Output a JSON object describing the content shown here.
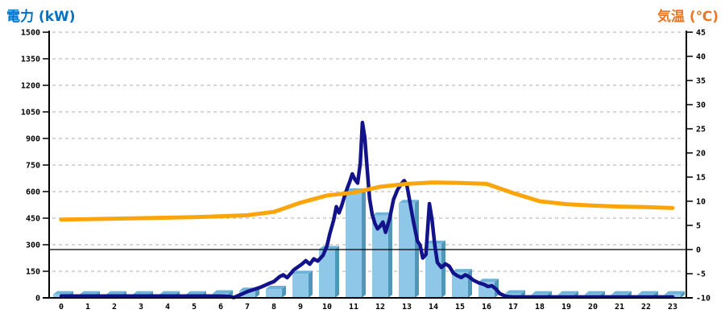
{
  "header": {
    "left_axis_title": "電力 (kW)",
    "right_axis_title": "気温 (℃)"
  },
  "colors": {
    "left_title": "#0072C6",
    "right_title": "#ED7622",
    "bar_front": "#8EC7E7",
    "bar_side": "#4E97B8",
    "bar_top": "#6FB4D8",
    "power_line": "#12128A",
    "temp_line": "#FBA50A",
    "gridline": "#BDBDBD",
    "axis": "#000000",
    "tick_text": "#000000"
  },
  "chart_data": {
    "type": "combo",
    "title": "",
    "legend": false,
    "grid": true,
    "x_axis": {
      "labels": [
        "0",
        "1",
        "2",
        "3",
        "4",
        "5",
        "6",
        "7",
        "8",
        "9",
        "10",
        "11",
        "12",
        "13",
        "14",
        "15",
        "16",
        "17",
        "18",
        "19",
        "20",
        "21",
        "22",
        "23"
      ]
    },
    "left_axis": {
      "title": "電力 (kW)",
      "unit": "kW",
      "min": 0,
      "max": 1500,
      "tick_step": 150,
      "ticks": [
        0,
        150,
        300,
        450,
        600,
        750,
        900,
        1050,
        1200,
        1350,
        1500
      ]
    },
    "right_axis": {
      "title": "気温 (℃)",
      "unit": "℃",
      "min": -10,
      "max": 45,
      "tick_step": 5,
      "ticks": [
        -10,
        -5,
        0,
        5,
        10,
        15,
        20,
        25,
        30,
        35,
        40,
        45
      ]
    },
    "reference_line": {
      "axis": "right",
      "value": 0
    },
    "series": [
      {
        "name": "hourly-power-bars",
        "type": "bar",
        "axis": "left",
        "unit": "kW",
        "x": [
          0,
          1,
          2,
          3,
          4,
          5,
          6,
          7,
          8,
          9,
          10,
          11,
          12,
          13,
          14,
          15,
          16,
          17,
          18,
          19,
          20,
          21,
          22,
          23
        ],
        "values": [
          20,
          20,
          20,
          20,
          20,
          20,
          25,
          40,
          50,
          135,
          275,
          600,
          465,
          535,
          305,
          145,
          90,
          25,
          20,
          20,
          20,
          20,
          20,
          20
        ]
      },
      {
        "name": "instantaneous-power-line",
        "type": "line",
        "axis": "left",
        "unit": "kW",
        "points": [
          [
            0,
            10
          ],
          [
            0.5,
            10
          ],
          [
            1,
            10
          ],
          [
            1.5,
            10
          ],
          [
            2,
            10
          ],
          [
            2.5,
            10
          ],
          [
            3,
            10
          ],
          [
            3.5,
            10
          ],
          [
            4,
            10
          ],
          [
            4.5,
            10
          ],
          [
            5,
            10
          ],
          [
            5.5,
            10
          ],
          [
            6,
            10
          ],
          [
            6.3,
            8
          ],
          [
            6.5,
            2
          ],
          [
            6.8,
            22
          ],
          [
            7,
            35
          ],
          [
            7.2,
            45
          ],
          [
            7.5,
            60
          ],
          [
            7.8,
            80
          ],
          [
            8,
            92
          ],
          [
            8.2,
            118
          ],
          [
            8.35,
            130
          ],
          [
            8.5,
            114
          ],
          [
            8.75,
            158
          ],
          [
            9.05,
            190
          ],
          [
            9.2,
            210
          ],
          [
            9.35,
            190
          ],
          [
            9.5,
            220
          ],
          [
            9.65,
            208
          ],
          [
            9.85,
            240
          ],
          [
            10,
            295
          ],
          [
            10.1,
            360
          ],
          [
            10.25,
            440
          ],
          [
            10.35,
            515
          ],
          [
            10.45,
            480
          ],
          [
            10.55,
            520
          ],
          [
            10.65,
            570
          ],
          [
            10.75,
            615
          ],
          [
            10.85,
            655
          ],
          [
            10.95,
            700
          ],
          [
            11.05,
            668
          ],
          [
            11.15,
            648
          ],
          [
            11.25,
            760
          ],
          [
            11.33,
            990
          ],
          [
            11.42,
            905
          ],
          [
            11.5,
            745
          ],
          [
            11.6,
            560
          ],
          [
            11.7,
            470
          ],
          [
            11.8,
            420
          ],
          [
            11.9,
            390
          ],
          [
            12,
            405
          ],
          [
            12.1,
            428
          ],
          [
            12.2,
            370
          ],
          [
            12.35,
            445
          ],
          [
            12.5,
            555
          ],
          [
            12.65,
            610
          ],
          [
            12.8,
            645
          ],
          [
            12.9,
            662
          ],
          [
            13,
            638
          ],
          [
            13.1,
            555
          ],
          [
            13.25,
            430
          ],
          [
            13.4,
            320
          ],
          [
            13.5,
            298
          ],
          [
            13.6,
            225
          ],
          [
            13.72,
            245
          ],
          [
            13.85,
            532
          ],
          [
            13.95,
            440
          ],
          [
            14.05,
            300
          ],
          [
            14.15,
            200
          ],
          [
            14.3,
            172
          ],
          [
            14.45,
            192
          ],
          [
            14.6,
            178
          ],
          [
            14.75,
            140
          ],
          [
            14.9,
            125
          ],
          [
            15.05,
            115
          ],
          [
            15.2,
            130
          ],
          [
            15.35,
            118
          ],
          [
            15.5,
            100
          ],
          [
            15.7,
            85
          ],
          [
            15.9,
            76
          ],
          [
            16.05,
            64
          ],
          [
            16.2,
            68
          ],
          [
            16.35,
            50
          ],
          [
            16.5,
            24
          ],
          [
            16.7,
            10
          ],
          [
            16.9,
            6
          ],
          [
            17,
            5
          ],
          [
            18,
            5
          ],
          [
            19,
            5
          ],
          [
            20,
            5
          ],
          [
            21,
            5
          ],
          [
            22,
            5
          ],
          [
            23,
            5
          ]
        ]
      },
      {
        "name": "temperature-line",
        "type": "line",
        "axis": "right",
        "unit": "℃",
        "x": [
          0,
          1,
          2,
          3,
          4,
          5,
          6,
          7,
          8,
          9,
          10,
          11,
          12,
          13,
          14,
          15,
          16,
          17,
          18,
          19,
          20,
          21,
          22,
          23
        ],
        "values": [
          6.2,
          6.3,
          6.4,
          6.5,
          6.6,
          6.7,
          6.9,
          7.1,
          7.8,
          9.7,
          11.2,
          11.8,
          13.0,
          13.6,
          13.9,
          13.8,
          13.6,
          11.7,
          10.0,
          9.4,
          9.1,
          8.9,
          8.8,
          8.6
        ]
      }
    ]
  }
}
